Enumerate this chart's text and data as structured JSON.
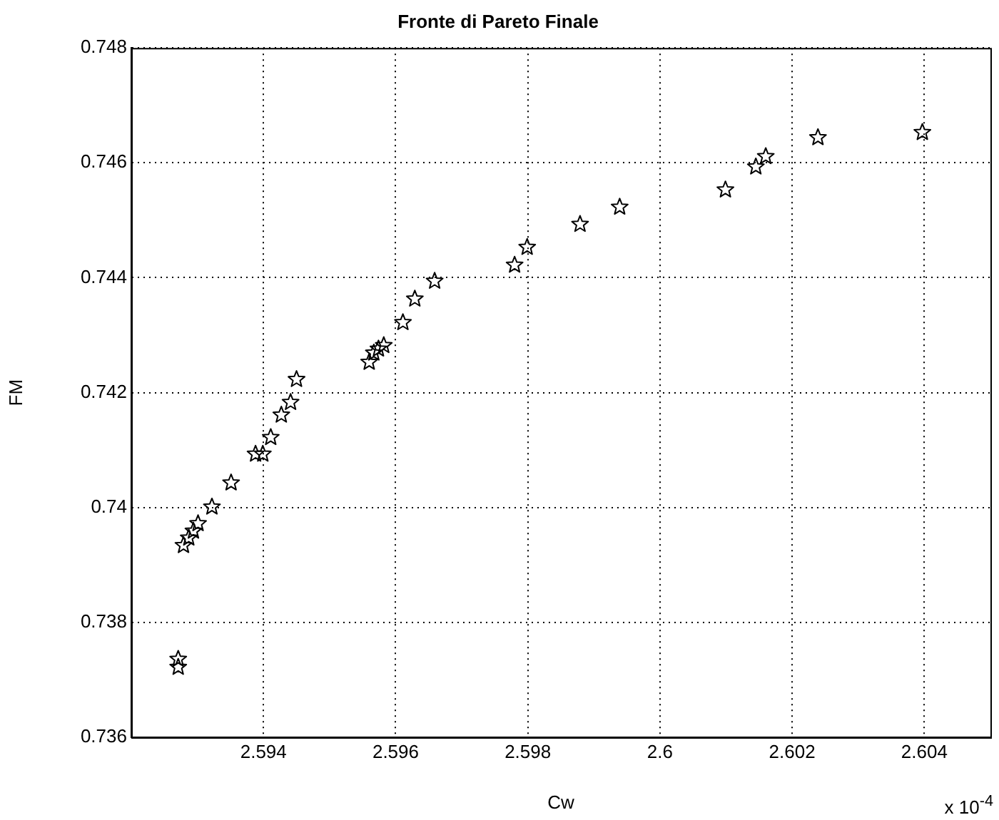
{
  "chart_data": {
    "type": "scatter",
    "title": "Fronte di Pareto Finale",
    "xlabel": "Cw",
    "ylabel": "FM",
    "annotations": [
      "x 10$^{-4}$"
    ],
    "x": [
      2.59271,
      2.59271,
      2.59279,
      2.59287,
      2.59294,
      2.59301,
      2.59322,
      2.59351,
      2.59388,
      2.59399,
      2.59411,
      2.59427,
      2.59441,
      2.5945,
      2.5956,
      2.59567,
      2.59574,
      2.59582,
      2.59611,
      2.59629,
      2.59659,
      2.5978,
      2.59799,
      2.59879,
      2.59939,
      2.60099,
      2.60145,
      2.6016,
      2.60239,
      2.60397
    ],
    "series": [
      {
        "color": "#000000",
        "values": [
          0.73736,
          0.73722,
          0.73934,
          0.73947,
          0.73959,
          0.73972,
          0.74001,
          0.74043,
          0.74093,
          0.74093,
          0.74122,
          0.74161,
          0.74183,
          0.74223,
          0.74253,
          0.74269,
          0.74276,
          0.74282,
          0.74322,
          0.74363,
          0.74394,
          0.74422,
          0.74453,
          0.74493,
          0.74523,
          0.74553,
          0.74593,
          0.74611,
          0.74644,
          0.74653
        ]
      }
    ],
    "xlim": [
      2.592,
      2.605
    ],
    "xticks": [
      2.594,
      2.596,
      2.598,
      2.6,
      2.602,
      2.604
    ],
    "ylim": [
      0.736,
      0.748
    ],
    "yticks": [
      0.736,
      0.738,
      0.74,
      0.742,
      0.744,
      0.746,
      0.748
    ],
    "grid": true,
    "marker": "star",
    "legend": false
  }
}
